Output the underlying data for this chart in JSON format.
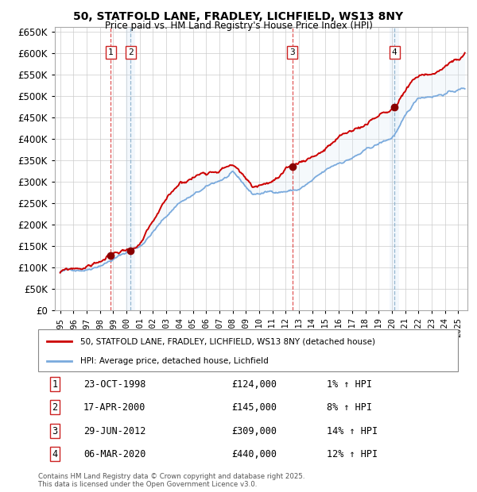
{
  "title_line1": "50, STATFOLD LANE, FRADLEY, LICHFIELD, WS13 8NY",
  "title_line2": "Price paid vs. HM Land Registry's House Price Index (HPI)",
  "legend_line1": "50, STATFOLD LANE, FRADLEY, LICHFIELD, WS13 8NY (detached house)",
  "legend_line2": "HPI: Average price, detached house, Lichfield",
  "transactions": [
    {
      "num": 1,
      "date": "23-OCT-1998",
      "price": 124000,
      "pct": "1%",
      "dir": "↑",
      "year": 1998.8
    },
    {
      "num": 2,
      "date": "17-APR-2000",
      "price": 145000,
      "pct": "8%",
      "dir": "↑",
      "year": 2000.3
    },
    {
      "num": 3,
      "date": "29-JUN-2012",
      "price": 309000,
      "pct": "14%",
      "dir": "↑",
      "year": 2012.5
    },
    {
      "num": 4,
      "date": "06-MAR-2020",
      "price": 440000,
      "pct": "12%",
      "dir": "↑",
      "year": 2020.2
    }
  ],
  "color_house": "#cc0000",
  "color_hpi": "#7aaadd",
  "color_hpi_fill": "#d8e8f5",
  "color_grid": "#cccccc",
  "color_vline_red": "#dd4444",
  "color_vline_blue": "#8ab0cc",
  "ylim": [
    0,
    660000
  ],
  "yticks": [
    0,
    50000,
    100000,
    150000,
    200000,
    250000,
    300000,
    350000,
    400000,
    450000,
    500000,
    550000,
    600000,
    650000
  ],
  "xlim_start": 1994.6,
  "xlim_end": 2025.7,
  "footer": "Contains HM Land Registry data © Crown copyright and database right 2025.\nThis data is licensed under the Open Government Licence v3.0."
}
